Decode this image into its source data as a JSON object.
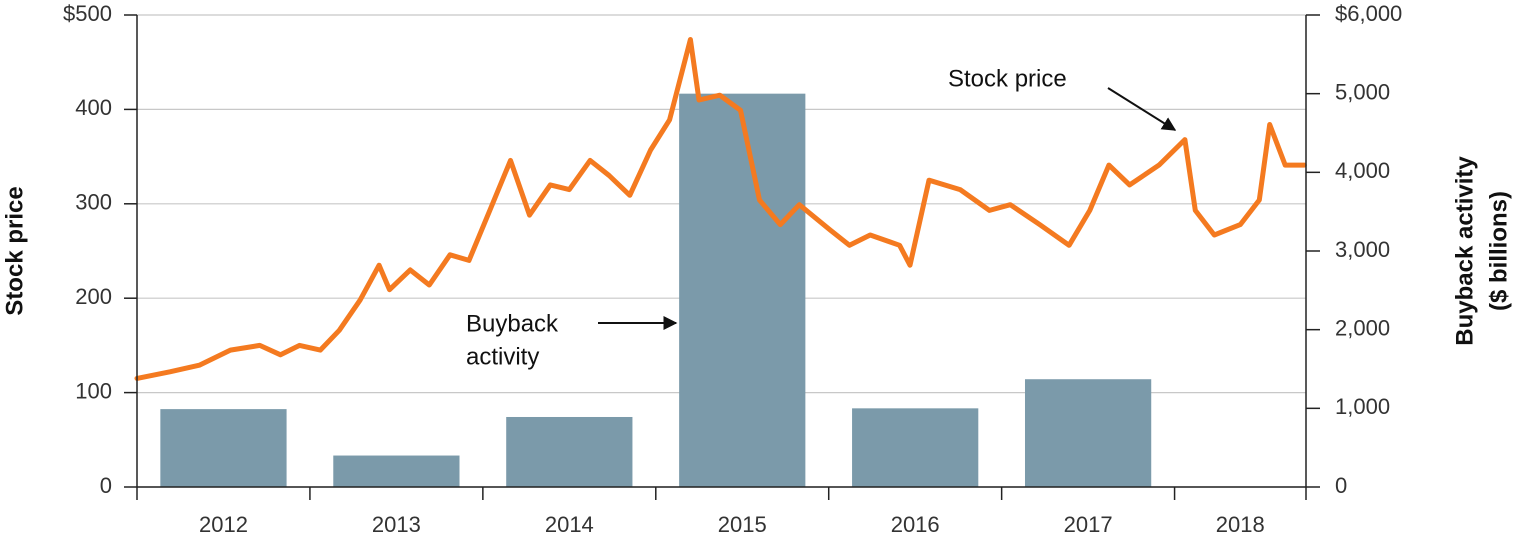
{
  "chart_data": {
    "type": "combo",
    "y_label": "Stock price",
    "y2_label": [
      "Buyback activity",
      "($ billions)"
    ],
    "annotations": [
      {
        "lines": [
          "Stock price"
        ]
      },
      {
        "lines": [
          "Buyback",
          "activity"
        ]
      }
    ],
    "categories": [
      "2012",
      "2013",
      "2014",
      "2015",
      "2016",
      "2017",
      "2018"
    ],
    "xlim": [
      2012,
      2018.76
    ],
    "ylim": [
      0,
      500
    ],
    "yticks": [
      0,
      100,
      200,
      300,
      400,
      {
        "value": 500,
        "label": "$500"
      }
    ],
    "y2lim": [
      0,
      6000
    ],
    "y2ticks": [
      0,
      {
        "value": 1000,
        "label": "1,000"
      },
      {
        "value": 2000,
        "label": "2,000"
      },
      {
        "value": 3000,
        "label": "3,000"
      },
      {
        "value": 4000,
        "label": "4,000"
      },
      {
        "value": 5000,
        "label": "5,000"
      },
      {
        "value": 6000,
        "label": "$6,000"
      }
    ],
    "grid": true,
    "series": [
      {
        "type": "bar",
        "axis": "y2",
        "color": "#7b9aaa",
        "values": [
          990,
          400,
          890,
          5000,
          1000,
          1370,
          null
        ]
      },
      {
        "type": "line",
        "axis": "y",
        "color": "#f47a20",
        "x": [
          2012.0,
          2012.19,
          2012.36,
          2012.54,
          2012.71,
          2012.83,
          2012.94,
          2013.06,
          2013.17,
          2013.29,
          2013.4,
          2013.46,
          2013.58,
          2013.69,
          2013.81,
          2013.92,
          2014.04,
          2014.16,
          2014.27,
          2014.39,
          2014.5,
          2014.62,
          2014.73,
          2014.85,
          2014.97,
          2015.08,
          2015.2,
          2015.25,
          2015.37,
          2015.49,
          2015.6,
          2015.72,
          2015.83,
          2016.01,
          2016.12,
          2016.24,
          2016.41,
          2016.47,
          2016.58,
          2016.76,
          2016.93,
          2017.05,
          2017.22,
          2017.39,
          2017.51,
          2017.62,
          2017.74,
          2017.91,
          2018.06,
          2018.12,
          2018.23,
          2018.38,
          2018.49,
          2018.55,
          2018.64,
          2018.75
        ],
        "values": [
          115,
          122,
          129,
          145,
          150,
          140,
          150,
          145,
          166,
          198,
          235,
          209,
          230,
          214,
          246,
          240,
          293,
          346,
          288,
          320,
          315,
          346,
          330,
          309,
          357,
          389,
          474,
          410,
          415,
          399,
          304,
          278,
          299,
          272,
          256,
          267,
          256,
          235,
          325,
          315,
          293,
          299,
          278,
          256,
          293,
          341,
          320,
          341,
          368,
          293,
          267,
          278,
          304,
          384,
          341,
          341
        ]
      }
    ]
  }
}
